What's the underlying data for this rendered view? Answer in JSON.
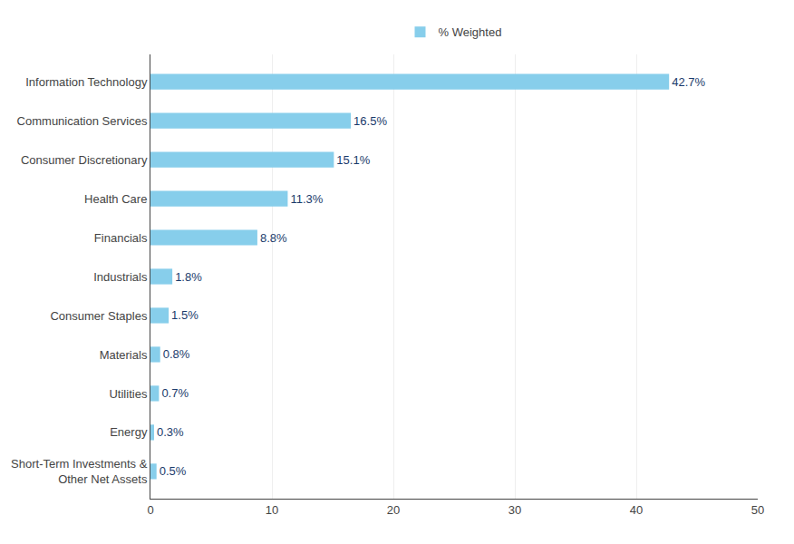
{
  "chart_data": {
    "type": "bar",
    "orientation": "horizontal",
    "categories": [
      "Short-Term Investments &\nOther Net Assets",
      "Energy",
      "Utilities",
      "Materials",
      "Consumer Staples",
      "Industrials",
      "Financials",
      "Health Care",
      "Consumer Discretionary",
      "Communication Services",
      "Information Technology"
    ],
    "series": [
      {
        "name": "% Weighted",
        "color": "#87CEEB",
        "values": [
          0.5,
          0.3,
          0.7,
          0.8,
          1.5,
          1.8,
          8.8,
          11.3,
          15.1,
          16.5,
          42.7
        ],
        "value_labels": [
          "0.5%",
          "0.3%",
          "0.7%",
          "0.8%",
          "1.5%",
          "1.8%",
          "8.8%",
          "11.3%",
          "15.1%",
          "16.5%",
          "42.7%"
        ]
      }
    ],
    "xlim": [
      0,
      50
    ],
    "xticks": [
      0,
      10,
      20,
      30,
      40,
      50
    ],
    "grid": true,
    "legend": "top",
    "data_labels": true
  }
}
